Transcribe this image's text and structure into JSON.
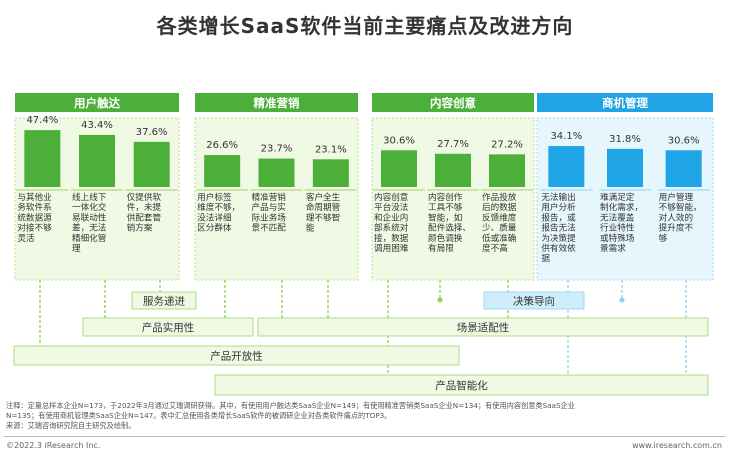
{
  "title": "各类增长SaaS软件当前主要痛点及改进方向",
  "colors": {
    "green_dark": "#4caf3a",
    "green_light": "#8fd14f",
    "blue": "#1fa4e6",
    "blue_light": "#cfeefb",
    "green_panel": "#f0f9e4",
    "blue_panel": "#e6f6fd"
  },
  "chart_data": {
    "type": "bar",
    "groups": [
      {
        "name": "用户触达",
        "color": "#4caf3a",
        "bars": [
          {
            "value": 47.4,
            "label": "47.4%",
            "desc": [
              "与其他业",
              "务软件系",
              "统数据源",
              "对接不够",
              "灵活"
            ]
          },
          {
            "value": 43.4,
            "label": "43.4%",
            "desc": [
              "线上线下",
              "一体化交",
              "易联动性",
              "差，无法",
              "精细化管",
              "理"
            ]
          },
          {
            "value": 37.6,
            "label": "37.6%",
            "desc": [
              "仅提供软",
              "件，未提",
              "供配套管",
              "销方案"
            ]
          }
        ]
      },
      {
        "name": "精准营销",
        "color": "#4caf3a",
        "bars": [
          {
            "value": 26.6,
            "label": "26.6%",
            "desc": [
              "用户标签",
              "维度不够，",
              "没法详细",
              "区分群体"
            ]
          },
          {
            "value": 23.7,
            "label": "23.7%",
            "desc": [
              "精准营销",
              "产品与实",
              "际业务场",
              "景不匹配"
            ]
          },
          {
            "value": 23.1,
            "label": "23.1%",
            "desc": [
              "客户全生",
              "命周期管",
              "理不够智",
              "能"
            ]
          }
        ]
      },
      {
        "name": "内容创意",
        "color": "#4caf3a",
        "bars": [
          {
            "value": 30.6,
            "label": "30.6%",
            "desc": [
              "内容创意",
              "平台没法",
              "和企业内",
              "部系统对",
              "接，数据",
              "调用困难"
            ]
          },
          {
            "value": 27.7,
            "label": "27.7%",
            "desc": [
              "内容创作",
              "工具不够",
              "智能，如",
              "配件选择、",
              "颜色调换",
              "有局限"
            ]
          },
          {
            "value": 27.2,
            "label": "27.2%",
            "desc": [
              "作品投放",
              "后的数据",
              "反馈维度",
              "少、质量",
              "低或准确",
              "度不高"
            ]
          }
        ]
      },
      {
        "name": "商机管理",
        "color": "#1fa4e6",
        "bars": [
          {
            "value": 34.1,
            "label": "34.1%",
            "desc": [
              "无法输出",
              "用户分析",
              "报告，或",
              "报告无法",
              "为决策提",
              "供有效依",
              "据"
            ]
          },
          {
            "value": 31.8,
            "label": "31.8%",
            "desc": [
              "难满足定",
              "制化需求，",
              "无法覆盖",
              "行业特性",
              "或特殊场",
              "景需求"
            ]
          },
          {
            "value": 30.6,
            "label": "30.6%",
            "desc": [
              "用户管理",
              "不够智能，",
              "对人效的",
              "提升度不",
              "够"
            ]
          }
        ]
      }
    ]
  },
  "directions": {
    "service": "服务递进",
    "decision": "决策导向",
    "practical": "产品实用性",
    "scenario": "场景适配性",
    "openness": "产品开放性",
    "intelligence": "产品智能化"
  },
  "notes": [
    "注释：定量总样本企业N=173，于2022年3月通过艾瑞调研获得。其中，有使用用户触达类SaaS企业N=149；有使用精准营销类SaaS企业N=134；有使用内容创意类SaaS企业",
    "N=135；有使用商机管理类SaaS企业N=147。表中汇总使用各类增长SaaS软件的被调研企业对各类软件痛点的TOP3。",
    "来源：艾瑞咨询研究院自主研究及绘制。"
  ],
  "copyright": "©2022.3 iResearch Inc.",
  "site": "www.iresearch.com.cn"
}
